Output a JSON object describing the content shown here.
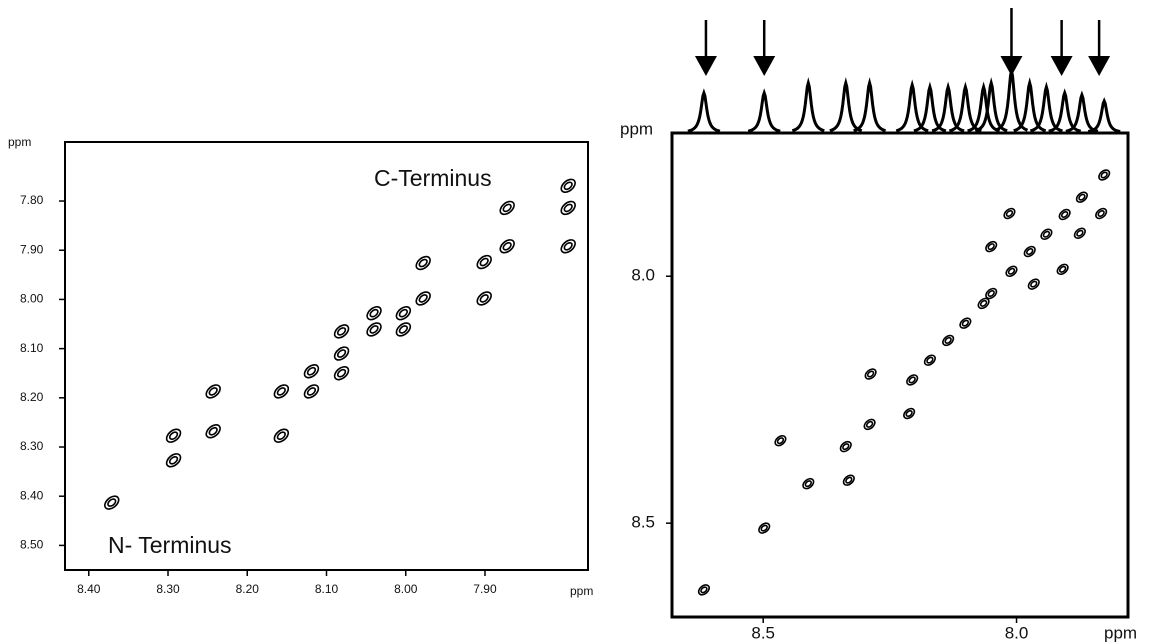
{
  "chart_data": [
    {
      "type": "scatter",
      "x_label": "ppm",
      "y_label": "ppm",
      "annotations": [
        "C-Terminus",
        "N- Terminus"
      ],
      "xlim": [
        8.43,
        7.77
      ],
      "ylim": [
        8.55,
        7.68
      ],
      "xticks": [
        {
          "value": 8.4,
          "label": "8.40"
        },
        {
          "value": 8.3,
          "label": "8.30"
        },
        {
          "value": 8.2,
          "label": "8.20"
        },
        {
          "value": 8.1,
          "label": "8.10"
        },
        {
          "value": 8.0,
          "label": "8.00"
        },
        {
          "value": 7.9,
          "label": "7.90"
        }
      ],
      "yticks": [
        {
          "value": 7.8,
          "label": "7.80"
        },
        {
          "value": 7.9,
          "label": "7.90"
        },
        {
          "value": 8.0,
          "label": "8.00"
        },
        {
          "value": 8.1,
          "label": "8.10"
        },
        {
          "value": 8.2,
          "label": "8.20"
        },
        {
          "value": 8.3,
          "label": "8.30"
        },
        {
          "value": 8.4,
          "label": "8.40"
        },
        {
          "value": 8.5,
          "label": "8.50"
        }
      ],
      "x": [
        8.371,
        8.293,
        8.243,
        8.157,
        8.119,
        8.081,
        8.04,
        8.003,
        7.978,
        7.901,
        7.872,
        7.795,
        8.243,
        8.293,
        8.157,
        8.119,
        8.081,
        8.081,
        8.04,
        8.003,
        7.978,
        7.901,
        7.872,
        7.795,
        7.795
      ],
      "values": [
        8.413,
        8.327,
        8.268,
        8.187,
        8.146,
        8.11,
        8.061,
        8.028,
        7.998,
        7.924,
        7.892,
        7.814,
        8.187,
        8.277,
        8.277,
        8.187,
        8.065,
        8.15,
        8.028,
        8.061,
        7.926,
        7.998,
        7.814,
        7.892,
        7.769
      ]
    },
    {
      "type": "scatter",
      "x_label": "ppm",
      "y_label": "ppm",
      "xlim": [
        8.68,
        7.78
      ],
      "ylim": [
        8.69,
        7.71
      ],
      "xticks": [
        8.5,
        {
          "value": 8,
          "label": "8.0"
        }
      ],
      "yticks": [
        {
          "value": 8,
          "label": "8.0"
        },
        8.5
      ],
      "projection": {
        "x": [
          8.617,
          8.498,
          8.411,
          8.337,
          8.29,
          8.206,
          8.171,
          8.135,
          8.101,
          8.065,
          8.05,
          8.01,
          7.974,
          7.941,
          7.905,
          7.871,
          7.827
        ],
        "values": [
          40,
          40,
          50,
          50,
          50,
          48,
          46,
          46,
          46,
          46,
          50,
          62,
          50,
          46,
          40,
          38,
          32
        ]
      },
      "arrows": [
        8.613,
        8.498,
        8.01,
        7.911,
        7.837
      ],
      "x": [
        8.617,
        8.498,
        8.411,
        8.337,
        8.29,
        8.206,
        8.171,
        8.135,
        8.101,
        8.065,
        8.05,
        8.01,
        7.974,
        7.941,
        7.905,
        7.871,
        7.827,
        8.212,
        8.288,
        7.909,
        7.875,
        7.833,
        7.966,
        8.05,
        8.014,
        8.331,
        8.466
      ],
      "values": [
        8.635,
        8.51,
        8.42,
        8.345,
        8.3,
        8.21,
        8.17,
        8.13,
        8.095,
        8.055,
        8.035,
        7.99,
        7.95,
        7.915,
        7.875,
        7.84,
        7.795,
        8.278,
        8.198,
        7.986,
        7.913,
        7.873,
        8.016,
        7.94,
        7.873,
        8.413,
        8.333
      ]
    }
  ]
}
